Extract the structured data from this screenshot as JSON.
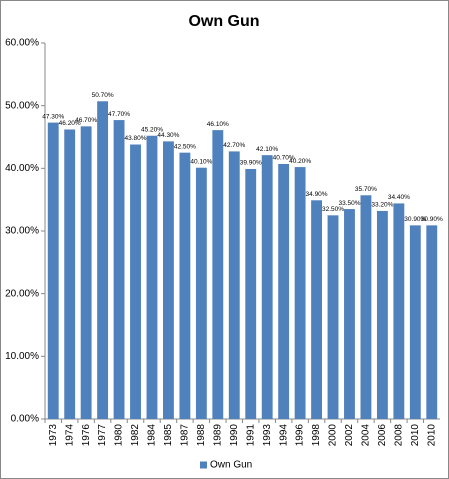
{
  "chart_data": {
    "type": "bar",
    "title": "Own Gun",
    "categories": [
      "1973",
      "1974",
      "1976",
      "1977",
      "1980",
      "1982",
      "1984",
      "1985",
      "1987",
      "1988",
      "1989",
      "1990",
      "1991",
      "1993",
      "1994",
      "1996",
      "1998",
      "2000",
      "2002",
      "2004",
      "2006",
      "2008",
      "2010",
      "2010"
    ],
    "series": [
      {
        "name": "Own Gun",
        "color": "#4f81bd",
        "values": [
          47.3,
          46.2,
          46.7,
          50.7,
          47.7,
          43.8,
          45.2,
          44.3,
          42.5,
          40.1,
          46.1,
          42.7,
          39.9,
          42.1,
          40.7,
          40.2,
          34.9,
          32.5,
          33.5,
          35.7,
          33.2,
          34.4,
          30.9,
          30.9
        ],
        "value_labels": [
          "47.30%",
          "46.20%",
          "46.70%",
          "50.70%",
          "47.70%",
          "43.80%",
          "45.20%",
          "44.30%",
          "42.50%",
          "40.10%",
          "46.10%",
          "42.70%",
          "39.90%",
          "42.10%",
          "40.70%",
          "40.20%",
          "34.90%",
          "32.50%",
          "33.50%",
          "35.70%",
          "33.20%",
          "34.40%",
          "30.90%",
          "30.90%"
        ]
      }
    ],
    "ylim": [
      0,
      60
    ],
    "yticks": [
      {
        "value": 0,
        "label": "0.00%"
      },
      {
        "value": 10,
        "label": "10.00%"
      },
      {
        "value": 20,
        "label": "20.00%"
      },
      {
        "value": 30,
        "label": "30.00%"
      },
      {
        "value": 40,
        "label": "40.00%"
      },
      {
        "value": 50,
        "label": "50.00%"
      },
      {
        "value": 60,
        "label": "60.00%"
      }
    ],
    "grid": false,
    "legend": "bottom"
  }
}
